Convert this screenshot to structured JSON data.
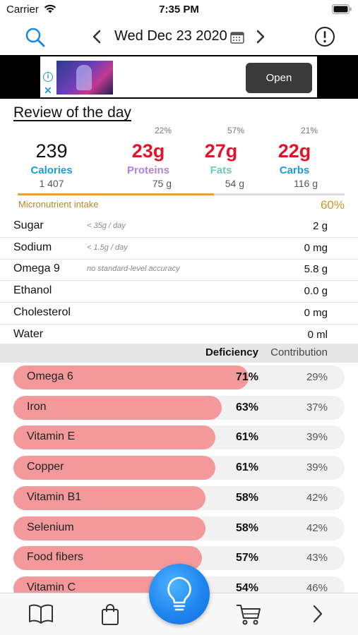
{
  "status_bar": {
    "carrier": "Carrier",
    "time": "7:35 PM"
  },
  "nav": {
    "date": "Wed Dec 23 2020",
    "icons": [
      "search-icon",
      "chevron-left-icon",
      "calendar-icon",
      "chevron-right-icon",
      "alert-icon"
    ]
  },
  "ad": {
    "open_label": "Open",
    "info_icon": "i",
    "close_icon": "✕"
  },
  "review": {
    "title": "Review of the day",
    "calories": {
      "value": "239",
      "label": "Calories",
      "target": "1 407",
      "color": "#1a9be0"
    },
    "proteins": {
      "pct": "22%",
      "value": "23g",
      "label": "Proteins",
      "target": "75 g",
      "color": "#b57ed8"
    },
    "fats": {
      "pct": "57%",
      "value": "27g",
      "label": "Fats",
      "target": "54 g",
      "color": "#6ccbc0"
    },
    "carbs": {
      "pct": "21%",
      "value": "22g",
      "label": "Carbs",
      "target": "116 g",
      "color": "#1a9be0"
    },
    "value_color": "#e0142a",
    "micronutrient_label": "Micronutrient intake",
    "micronutrient_pct": "60%",
    "micronutrient_level": 0.6
  },
  "nutrients": [
    {
      "name": "Sugar",
      "note": "< 35g / day",
      "value": "2 g"
    },
    {
      "name": "Sodium",
      "note": "< 1.5g / day",
      "value": "0 mg"
    },
    {
      "name": "Omega 9",
      "note": "no standard-level accuracy",
      "value": "5.8 g"
    },
    {
      "name": "Ethanol",
      "note": "",
      "value": "0.0 g"
    },
    {
      "name": "Cholesterol",
      "note": "",
      "value": "0 mg"
    },
    {
      "name": "Water",
      "note": "",
      "value": "0 ml"
    }
  ],
  "table_header": {
    "deficiency": "Deficiency",
    "contribution": "Contribution"
  },
  "deficiencies": [
    {
      "name": "Omega 6",
      "deficiency": "71%",
      "contribution": "29%",
      "level": 0.71
    },
    {
      "name": "Iron",
      "deficiency": "63%",
      "contribution": "37%",
      "level": 0.63
    },
    {
      "name": "Vitamin E",
      "deficiency": "61%",
      "contribution": "39%",
      "level": 0.61
    },
    {
      "name": "Copper",
      "deficiency": "61%",
      "contribution": "39%",
      "level": 0.61
    },
    {
      "name": "Vitamin B1",
      "deficiency": "58%",
      "contribution": "42%",
      "level": 0.58
    },
    {
      "name": "Selenium",
      "deficiency": "58%",
      "contribution": "42%",
      "level": 0.58
    },
    {
      "name": "Food fibers",
      "deficiency": "57%",
      "contribution": "43%",
      "level": 0.57
    },
    {
      "name": "Vitamin C",
      "deficiency": "54%",
      "contribution": "46%",
      "level": 0.54
    }
  ],
  "tab_bar": {
    "icons": [
      "book-icon",
      "bag-icon",
      "lightbulb-icon",
      "cart-icon",
      "chevron-right-icon"
    ]
  }
}
